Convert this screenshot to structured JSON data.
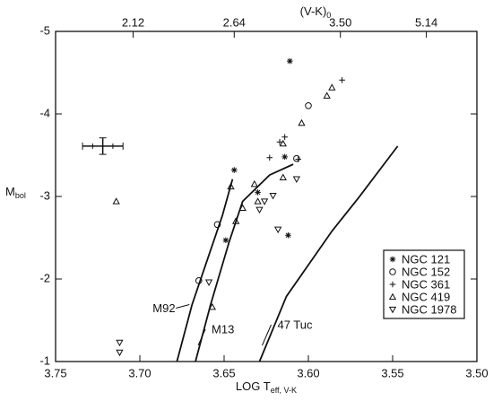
{
  "chart_data": {
    "type": "scatter",
    "x_label": "LOG T",
    "x_label_sub": "eff, V-K",
    "y_label": "M",
    "y_label_sub": "bol",
    "top_label": "(V-K)",
    "top_label_sub": "0",
    "xlim": [
      3.75,
      3.5
    ],
    "ylim": [
      -1,
      -5
    ],
    "xticks": [
      3.75,
      {
        "value": 3.7,
        "label": "3.70"
      },
      3.65,
      {
        "value": 3.6,
        "label": "3.60"
      },
      3.55,
      {
        "value": 3.5,
        "label": "3.50"
      }
    ],
    "yticks": [
      -5,
      -4,
      -3,
      -2,
      -1
    ],
    "top_ticks": [
      {
        "value": 3.704,
        "label": "2.12"
      },
      {
        "value": 3.644,
        "label": "2.64"
      },
      {
        "value": 3.581,
        "label": "3.50"
      },
      {
        "value": 3.53,
        "label": "5.14"
      }
    ],
    "color": "#111111",
    "series": [
      {
        "name": "NGC 121",
        "marker": "star",
        "x": [
          3.611,
          3.644,
          3.63,
          3.649,
          3.612,
          3.614
        ],
        "values": [
          -4.64,
          -3.32,
          -3.05,
          -2.47,
          -2.53,
          -3.48
        ]
      },
      {
        "name": "NGC 152",
        "marker": "circle",
        "x": [
          3.665,
          3.654,
          3.6,
          3.607
        ],
        "values": [
          -1.98,
          -2.66,
          -4.1,
          -3.46
        ]
      },
      {
        "name": "NGC 361",
        "marker": "plus",
        "x": [
          3.58,
          3.614,
          3.617,
          3.623,
          3.606
        ],
        "values": [
          -4.41,
          -3.72,
          -3.66,
          -3.47,
          -3.45
        ]
      },
      {
        "name": "NGC 419",
        "marker": "triangle-up",
        "x": [
          3.714,
          3.646,
          3.657,
          3.643,
          3.639,
          3.632,
          3.63,
          3.615,
          3.604,
          3.589,
          3.586,
          3.615
        ],
        "values": [
          -2.94,
          -3.12,
          -1.66,
          -2.7,
          -2.86,
          -3.15,
          -2.94,
          -3.64,
          -3.89,
          -4.22,
          -4.32,
          -3.23
        ]
      },
      {
        "name": "NGC 1978",
        "marker": "triangle-down",
        "x": [
          3.712,
          3.712,
          3.659,
          3.629,
          3.626,
          3.621,
          3.618,
          3.607
        ],
        "values": [
          -1.23,
          -1.11,
          -1.96,
          -2.84,
          -2.94,
          -3.01,
          -2.6,
          -3.21
        ]
      }
    ],
    "curves": [
      {
        "name": "M92",
        "x": [
          3.678,
          3.669,
          3.66,
          3.651,
          3.645
        ],
        "values": [
          -1,
          -1.69,
          -2.23,
          -2.77,
          -3.21
        ]
      },
      {
        "name": "M13",
        "x": [
          3.667,
          3.658,
          3.647,
          3.639,
          3.623,
          3.609
        ],
        "values": [
          -1,
          -1.69,
          -2.45,
          -2.94,
          -3.26,
          -3.39
        ]
      },
      {
        "name": "47 Tuc",
        "x": [
          3.629,
          3.613,
          3.586,
          3.57,
          3.547
        ],
        "values": [
          -1,
          -1.79,
          -2.58,
          -2.99,
          -3.61
        ]
      }
    ],
    "error_bar": {
      "x": 3.722,
      "y": -3.61,
      "xerr": 0.012,
      "yerr": 0.1
    },
    "legend": "lower right"
  }
}
